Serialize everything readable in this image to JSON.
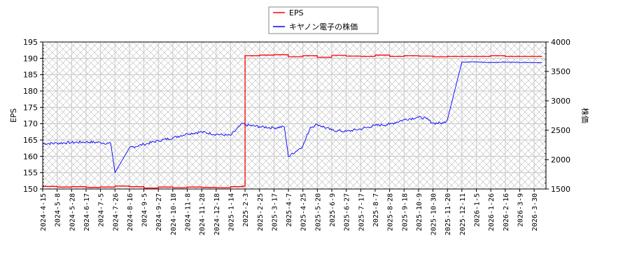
{
  "chart_data": {
    "type": "line",
    "title": "",
    "legend": {
      "position": "top-center",
      "entries": [
        {
          "label": "EPS",
          "color": "#ff0000"
        },
        {
          "label": "キヤノン電子の株価",
          "color": "#0000ff"
        }
      ]
    },
    "xlabel": "",
    "ylabel_left": "EPS",
    "ylabel_right": "株価",
    "ylim_left": [
      150,
      195
    ],
    "ylim_right": [
      1500,
      4000
    ],
    "yticks_left": [
      150,
      155,
      160,
      165,
      170,
      175,
      180,
      185,
      190,
      195
    ],
    "yticks_right": [
      1500,
      2000,
      2500,
      3000,
      3500,
      4000
    ],
    "xticks": [
      "2024-4-15",
      "2024-5-8",
      "2024-5-28",
      "2024-6-17",
      "2024-7-5",
      "2024-7-26",
      "2024-8-16",
      "2024-9-5",
      "2024-9-27",
      "2024-10-18",
      "2024-11-8",
      "2024-11-28",
      "2024-12-18",
      "2025-1-14",
      "2025-2-3",
      "2025-2-25",
      "2025-3-17",
      "2025-4-7",
      "2025-4-25",
      "2025-5-20",
      "2025-6-9",
      "2025-6-27",
      "2025-7-17",
      "2025-8-7",
      "2025-8-28",
      "2025-9-18",
      "2025-10-9",
      "2025-10-30",
      "2025-11-20",
      "2025-12-11",
      "2026-1-5",
      "2026-1-26",
      "2026-2-16",
      "2026-3-9",
      "2026-3-30"
    ],
    "grid": true,
    "series": [
      {
        "name": "EPS",
        "axis": "left",
        "color": "#ff0000",
        "x": [
          "2024-4-15",
          "2024-5-8",
          "2024-5-28",
          "2024-6-17",
          "2024-7-5",
          "2024-7-26",
          "2024-8-16",
          "2024-9-5",
          "2024-9-27",
          "2024-10-18",
          "2024-11-8",
          "2024-11-28",
          "2024-12-18",
          "2025-1-14",
          "2025-1-31",
          "2025-2-3",
          "2025-2-25",
          "2025-3-17",
          "2025-4-7",
          "2025-4-25",
          "2025-5-20",
          "2025-6-9",
          "2025-6-27",
          "2025-7-17",
          "2025-8-7",
          "2025-8-28",
          "2025-9-18",
          "2025-10-9",
          "2025-10-30",
          "2025-11-20",
          "2025-12-11",
          "2026-1-5",
          "2026-1-26",
          "2026-2-16",
          "2026-3-9",
          "2026-3-30",
          "2026-4-10"
        ],
        "values": [
          150.8,
          150.6,
          150.7,
          150.5,
          150.6,
          150.9,
          150.7,
          150.3,
          150.6,
          150.4,
          150.6,
          150.5,
          150.4,
          150.7,
          150.9,
          190.8,
          191.0,
          191.1,
          190.5,
          190.8,
          190.3,
          190.9,
          190.7,
          190.6,
          191.0,
          190.6,
          190.8,
          190.7,
          190.5,
          190.6,
          190.6,
          190.6,
          190.8,
          190.6,
          190.6,
          190.6,
          190.6
        ]
      },
      {
        "name": "キヤノン電子の株価",
        "axis": "right",
        "color": "#0000ff",
        "x": [
          "2024-4-15",
          "2024-5-8",
          "2024-5-28",
          "2024-6-17",
          "2024-7-5",
          "2024-7-20",
          "2024-7-26",
          "2024-8-16",
          "2024-9-5",
          "2024-9-27",
          "2024-10-18",
          "2024-11-8",
          "2024-11-28",
          "2024-12-18",
          "2025-1-14",
          "2025-1-31",
          "2025-2-3",
          "2025-2-25",
          "2025-3-17",
          "2025-4-1",
          "2025-4-7",
          "2025-4-25",
          "2025-5-8",
          "2025-5-20",
          "2025-6-9",
          "2025-6-27",
          "2025-7-17",
          "2025-8-7",
          "2025-8-28",
          "2025-9-18",
          "2025-10-9",
          "2025-10-20",
          "2025-10-30",
          "2025-11-14",
          "2025-11-20",
          "2025-12-11",
          "2026-1-5",
          "2026-1-26",
          "2026-2-16",
          "2026-3-9",
          "2026-3-30",
          "2026-4-10"
        ],
        "values": [
          2270,
          2280,
          2290,
          2300,
          2290,
          2270,
          1780,
          2200,
          2260,
          2320,
          2370,
          2440,
          2470,
          2430,
          2410,
          2620,
          2590,
          2560,
          2540,
          2560,
          2050,
          2230,
          2550,
          2600,
          2500,
          2480,
          2520,
          2580,
          2600,
          2680,
          2720,
          2700,
          2620,
          2620,
          2680,
          3660,
          3660,
          3650,
          3660,
          3650,
          3650,
          3650
        ]
      }
    ]
  }
}
